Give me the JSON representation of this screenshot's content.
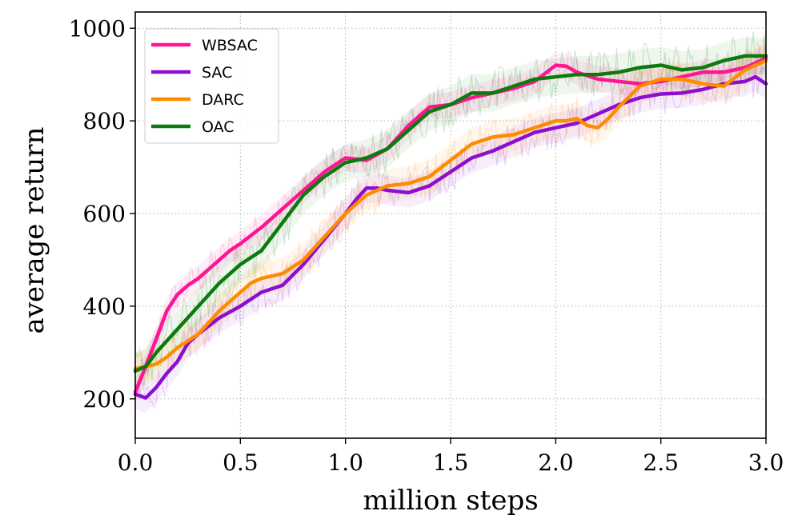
{
  "chart_data": {
    "type": "line",
    "title": "",
    "xlabel": "million steps",
    "ylabel": "average return",
    "xlim": [
      0.0,
      3.0
    ],
    "ylim": [
      115,
      1035
    ],
    "xticks": [
      0.0,
      0.5,
      1.0,
      1.5,
      2.0,
      2.5,
      3.0
    ],
    "xtick_labels": [
      "0.0",
      "0.5",
      "1.0",
      "1.5",
      "2.0",
      "2.5",
      "3.0"
    ],
    "yticks": [
      200,
      400,
      600,
      800,
      1000
    ],
    "ytick_labels": [
      "200",
      "400",
      "600",
      "800",
      "1000"
    ],
    "grid": true,
    "legend_position": "top-left",
    "series": [
      {
        "name": "WBSAC",
        "color": "#ff1493",
        "x": [
          0.0,
          0.05,
          0.1,
          0.15,
          0.2,
          0.25,
          0.3,
          0.35,
          0.4,
          0.45,
          0.5,
          0.6,
          0.7,
          0.8,
          0.9,
          1.0,
          1.1,
          1.2,
          1.3,
          1.4,
          1.5,
          1.6,
          1.7,
          1.8,
          1.9,
          2.0,
          2.05,
          2.1,
          2.2,
          2.3,
          2.4,
          2.5,
          2.6,
          2.7,
          2.8,
          2.9,
          3.0
        ],
        "y": [
          215,
          270,
          330,
          390,
          425,
          445,
          460,
          480,
          500,
          520,
          535,
          570,
          610,
          650,
          690,
          720,
          715,
          740,
          790,
          830,
          835,
          850,
          860,
          870,
          885,
          920,
          918,
          905,
          890,
          885,
          880,
          885,
          895,
          905,
          905,
          915,
          935
        ]
      },
      {
        "name": "SAC",
        "color": "#8b0fcf",
        "x": [
          0.0,
          0.05,
          0.1,
          0.15,
          0.2,
          0.25,
          0.3,
          0.4,
          0.5,
          0.6,
          0.7,
          0.8,
          0.9,
          1.0,
          1.05,
          1.1,
          1.15,
          1.2,
          1.3,
          1.4,
          1.5,
          1.6,
          1.7,
          1.8,
          1.9,
          2.0,
          2.1,
          2.2,
          2.3,
          2.4,
          2.5,
          2.6,
          2.7,
          2.8,
          2.9,
          2.95,
          3.0
        ],
        "y": [
          210,
          202,
          225,
          255,
          280,
          320,
          340,
          375,
          400,
          430,
          445,
          490,
          545,
          600,
          630,
          655,
          655,
          650,
          645,
          660,
          690,
          720,
          735,
          755,
          775,
          785,
          795,
          815,
          835,
          850,
          858,
          860,
          868,
          880,
          885,
          895,
          880
        ]
      },
      {
        "name": "DARC",
        "color": "#ff8c00",
        "x": [
          0.0,
          0.1,
          0.15,
          0.2,
          0.3,
          0.4,
          0.5,
          0.55,
          0.6,
          0.7,
          0.8,
          0.9,
          1.0,
          1.1,
          1.2,
          1.3,
          1.4,
          1.5,
          1.6,
          1.7,
          1.8,
          1.9,
          2.0,
          2.05,
          2.1,
          2.15,
          2.2,
          2.25,
          2.3,
          2.4,
          2.5,
          2.6,
          2.7,
          2.8,
          2.9,
          3.0
        ],
        "y": [
          265,
          275,
          290,
          310,
          340,
          390,
          430,
          450,
          460,
          470,
          500,
          550,
          600,
          640,
          660,
          665,
          680,
          715,
          750,
          765,
          770,
          785,
          800,
          800,
          805,
          790,
          785,
          805,
          830,
          875,
          890,
          890,
          880,
          875,
          910,
          930
        ]
      },
      {
        "name": "OAC",
        "color": "#0c7a0c",
        "x": [
          0.0,
          0.05,
          0.1,
          0.2,
          0.3,
          0.4,
          0.5,
          0.6,
          0.7,
          0.8,
          0.9,
          1.0,
          1.1,
          1.2,
          1.3,
          1.4,
          1.5,
          1.6,
          1.7,
          1.8,
          1.9,
          2.0,
          2.1,
          2.2,
          2.3,
          2.4,
          2.5,
          2.6,
          2.7,
          2.8,
          2.9,
          3.0
        ],
        "y": [
          260,
          270,
          300,
          350,
          400,
          450,
          490,
          520,
          580,
          640,
          680,
          710,
          720,
          740,
          780,
          820,
          835,
          860,
          860,
          875,
          890,
          895,
          900,
          900,
          905,
          915,
          920,
          910,
          915,
          930,
          940,
          940
        ]
      }
    ]
  }
}
